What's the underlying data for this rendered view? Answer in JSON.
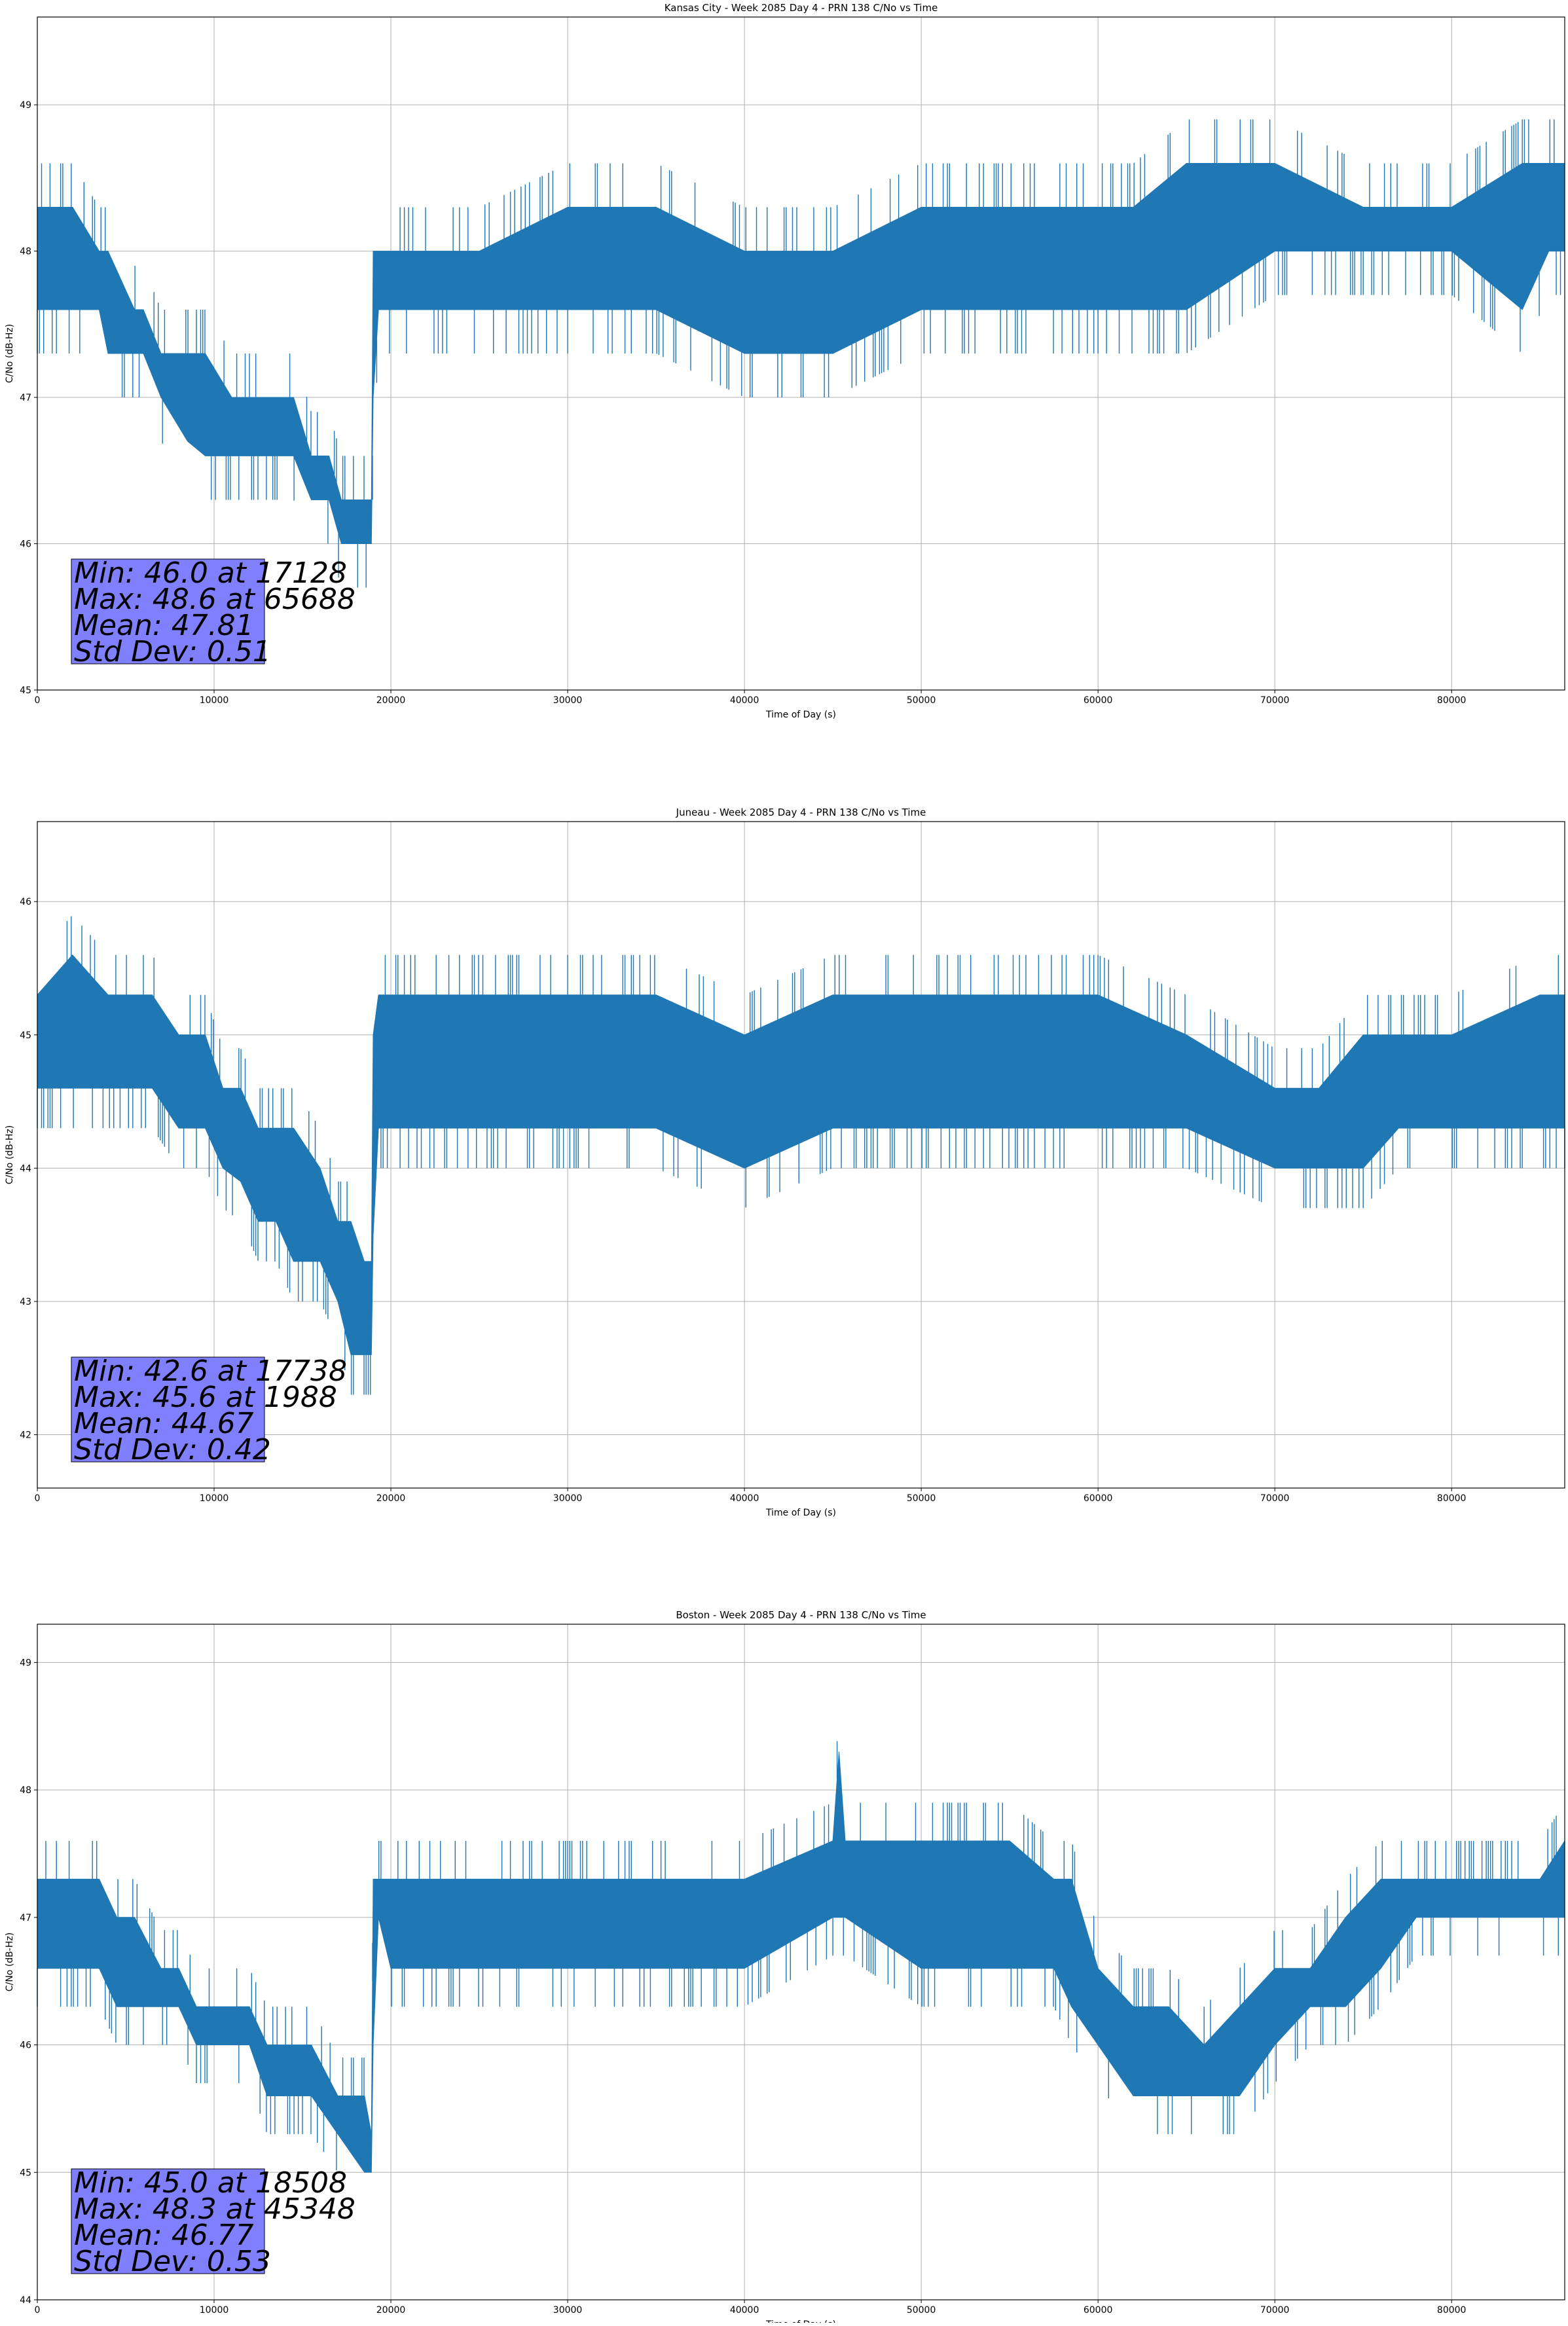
{
  "chart_data": [
    {
      "type": "line",
      "title": "Kansas City - Week 2085 Day 4 - PRN 138 C/No vs Time",
      "xlabel": "Time of Day (s)",
      "ylabel": "C/No (dB-Hz)",
      "xlim": [
        0,
        86400
      ],
      "ylim": [
        45,
        49.6
      ],
      "xticks": [
        0,
        10000,
        20000,
        30000,
        40000,
        50000,
        60000,
        70000,
        80000
      ],
      "yticks": [
        45,
        46,
        47,
        48,
        49
      ],
      "grid": true,
      "color": "#1f77b4",
      "series": [
        {
          "x": [
            0,
            2000,
            3500,
            4000,
            5500,
            6000,
            7000,
            8500,
            9500,
            11000,
            12500,
            14500,
            15500,
            16500,
            17200,
            18000,
            18900,
            19000,
            19300,
            20000,
            25000,
            30000,
            35000,
            40000,
            45000,
            50000,
            55000,
            60000,
            62000,
            65000,
            70000,
            75000,
            80000,
            84000,
            85500,
            86400
          ],
          "low": [
            47.6,
            47.6,
            47.6,
            47.3,
            47.3,
            47.3,
            47.0,
            46.7,
            46.6,
            46.6,
            46.6,
            46.6,
            46.3,
            46.3,
            46.0,
            46.0,
            46.0,
            47.0,
            47.6,
            47.6,
            47.6,
            47.6,
            47.6,
            47.3,
            47.3,
            47.6,
            47.6,
            47.6,
            47.6,
            47.6,
            48.0,
            48.0,
            48.0,
            47.6,
            48.0,
            48.0
          ],
          "high": [
            48.3,
            48.3,
            48.0,
            48.0,
            47.6,
            47.6,
            47.3,
            47.3,
            47.3,
            47.0,
            47.0,
            47.0,
            46.6,
            46.6,
            46.3,
            46.3,
            46.3,
            48.0,
            48.0,
            48.0,
            48.0,
            48.3,
            48.3,
            48.0,
            48.0,
            48.3,
            48.3,
            48.3,
            48.3,
            48.6,
            48.6,
            48.3,
            48.3,
            48.6,
            48.6,
            48.6
          ]
        }
      ],
      "stats": {
        "min": "Min: 46.0 at 17128",
        "max": "Max: 48.6 at 65688",
        "mean": "Mean: 47.81",
        "std": "Std Dev: 0.51"
      }
    },
    {
      "type": "line",
      "title": "Juneau - Week 2085 Day 4 - PRN 138 C/No vs Time",
      "xlabel": "Time of Day (s)",
      "ylabel": "C/No (dB-Hz)",
      "xlim": [
        0,
        86400
      ],
      "ylim": [
        41.6,
        46.6
      ],
      "xticks": [
        0,
        10000,
        20000,
        30000,
        40000,
        50000,
        60000,
        70000,
        80000
      ],
      "yticks": [
        42,
        43,
        44,
        45,
        46
      ],
      "grid": true,
      "color": "#1f77b4",
      "series": [
        {
          "x": [
            0,
            1988,
            4000,
            6500,
            8000,
            9500,
            10500,
            11500,
            12500,
            13500,
            14500,
            16000,
            17000,
            17738,
            18500,
            18900,
            19000,
            19300,
            20000,
            25000,
            30000,
            35000,
            40000,
            45000,
            50000,
            55000,
            60000,
            65000,
            70000,
            72500,
            75000,
            77000,
            80000,
            85000,
            86400
          ],
          "low": [
            44.6,
            44.6,
            44.6,
            44.6,
            44.3,
            44.3,
            44.0,
            43.9,
            43.6,
            43.6,
            43.3,
            43.3,
            43.0,
            42.6,
            42.6,
            42.6,
            43.5,
            44.3,
            44.3,
            44.3,
            44.3,
            44.3,
            44.0,
            44.3,
            44.3,
            44.3,
            44.3,
            44.3,
            44.0,
            44.0,
            44.0,
            44.3,
            44.3,
            44.3,
            44.3
          ],
          "high": [
            45.3,
            45.6,
            45.3,
            45.3,
            45.0,
            45.0,
            44.6,
            44.6,
            44.3,
            44.3,
            44.3,
            44.0,
            43.6,
            43.6,
            43.3,
            43.3,
            45.0,
            45.3,
            45.3,
            45.3,
            45.3,
            45.3,
            45.0,
            45.3,
            45.3,
            45.3,
            45.3,
            45.0,
            44.6,
            44.6,
            45.0,
            45.0,
            45.0,
            45.3,
            45.3
          ]
        }
      ],
      "stats": {
        "min": "Min: 42.6 at 17738",
        "max": "Max: 45.6 at 1988",
        "mean": "Mean: 44.67",
        "std": "Std Dev: 0.42"
      }
    },
    {
      "type": "line",
      "title": "Boston - Week 2085 Day 4 - PRN 138 C/No vs Time",
      "xlabel": "Time of Day (s)",
      "ylabel": "C/No (dB-Hz)",
      "xlim": [
        0,
        86400
      ],
      "ylim": [
        44,
        49.3
      ],
      "xticks": [
        0,
        10000,
        20000,
        30000,
        40000,
        50000,
        60000,
        70000,
        80000
      ],
      "yticks": [
        44,
        45,
        46,
        47,
        48,
        49
      ],
      "grid": true,
      "color": "#1f77b4",
      "series": [
        {
          "x": [
            0,
            2000,
            3500,
            4500,
            5500,
            7000,
            8000,
            9000,
            10500,
            12000,
            13000,
            14000,
            15500,
            17000,
            18508,
            18900,
            19000,
            19300,
            20000,
            25000,
            30000,
            35000,
            40000,
            45000,
            45348,
            45700,
            50000,
            55000,
            57500,
            58500,
            60000,
            62000,
            64000,
            66000,
            68000,
            70000,
            72000,
            74000,
            76000,
            78000,
            80000,
            85000,
            86400
          ],
          "low": [
            46.6,
            46.6,
            46.6,
            46.3,
            46.3,
            46.3,
            46.3,
            46.0,
            46.0,
            46.0,
            45.6,
            45.6,
            45.6,
            45.3,
            45.0,
            45.0,
            46.0,
            47.0,
            46.6,
            46.6,
            46.6,
            46.6,
            46.6,
            47.0,
            47.0,
            47.0,
            46.6,
            46.6,
            46.6,
            46.3,
            46.0,
            45.6,
            45.6,
            45.6,
            45.6,
            46.0,
            46.3,
            46.3,
            46.6,
            47.0,
            47.0,
            47.0,
            47.0
          ],
          "high": [
            47.3,
            47.3,
            47.3,
            47.0,
            47.0,
            46.6,
            46.6,
            46.3,
            46.3,
            46.3,
            46.0,
            46.0,
            46.0,
            45.6,
            45.6,
            45.3,
            47.3,
            47.3,
            47.3,
            47.3,
            47.3,
            47.3,
            47.3,
            47.6,
            48.3,
            47.6,
            47.6,
            47.6,
            47.3,
            47.3,
            46.6,
            46.3,
            46.3,
            46.0,
            46.3,
            46.6,
            46.6,
            47.0,
            47.3,
            47.3,
            47.3,
            47.3,
            47.6
          ]
        }
      ],
      "stats": {
        "min": "Min: 45.0 at 18508",
        "max": "Max: 48.3 at 45348",
        "mean": "Mean: 46.77",
        "std": "Std Dev: 0.53"
      }
    }
  ]
}
